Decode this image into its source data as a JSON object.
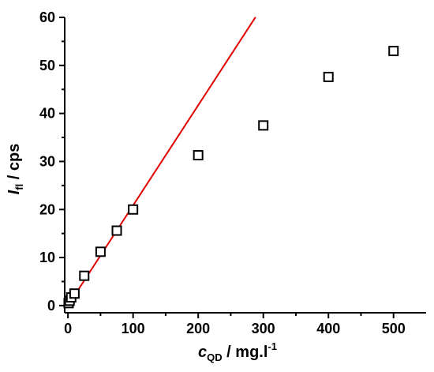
{
  "chart_data": {
    "type": "scatter",
    "title": "",
    "xlabel": {
      "main": "c",
      "sub": "QD",
      "rest": " / mg.l",
      "sup": "-1"
    },
    "ylabel": {
      "main": "I",
      "sub": "fl",
      "rest": " / cps"
    },
    "xlim": [
      -5,
      550
    ],
    "ylim": [
      -1.5,
      60
    ],
    "xticks": [
      0,
      100,
      200,
      300,
      400,
      500
    ],
    "yticks": [
      0,
      10,
      20,
      30,
      40,
      50,
      60
    ],
    "grid": false,
    "series": [
      {
        "marker": "open-square",
        "color": "#000000",
        "x": [
          1,
          2.5,
          5,
          10,
          25,
          50,
          75,
          100,
          200,
          300,
          400,
          500
        ],
        "y": [
          0.5,
          1.0,
          1.7,
          2.5,
          6.2,
          11.2,
          15.6,
          20.0,
          31.3,
          37.5,
          47.6,
          53.0
        ]
      }
    ],
    "fit_line": {
      "color": "#e00000",
      "slope": 0.2085,
      "intercept": 0,
      "x_range": [
        0,
        288
      ]
    }
  }
}
